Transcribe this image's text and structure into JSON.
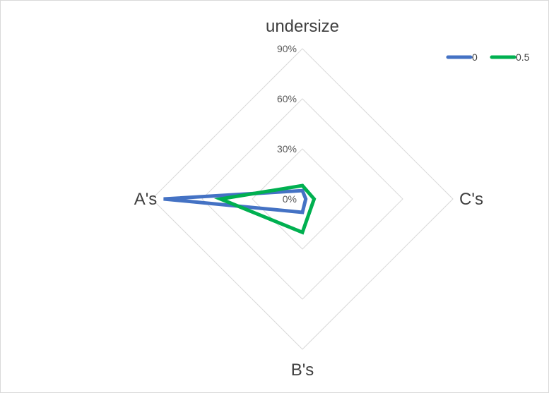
{
  "chart_data": {
    "type": "radar",
    "axes": [
      "undersize",
      "C's",
      "B's",
      "A's"
    ],
    "series": [
      {
        "name": "0",
        "color": "#4472c4",
        "values": [
          0.05,
          0.02,
          0.08,
          0.83
        ]
      },
      {
        "name": "0.5",
        "color": "#00b050",
        "values": [
          0.08,
          0.07,
          0.2,
          0.49
        ]
      }
    ],
    "rings": [
      0,
      0.3,
      0.6,
      0.9
    ],
    "tick_labels": [
      "0%",
      "30%",
      "60%",
      "90%"
    ],
    "range": [
      0,
      0.9
    ],
    "legend_position": "top-right",
    "grid": true
  }
}
